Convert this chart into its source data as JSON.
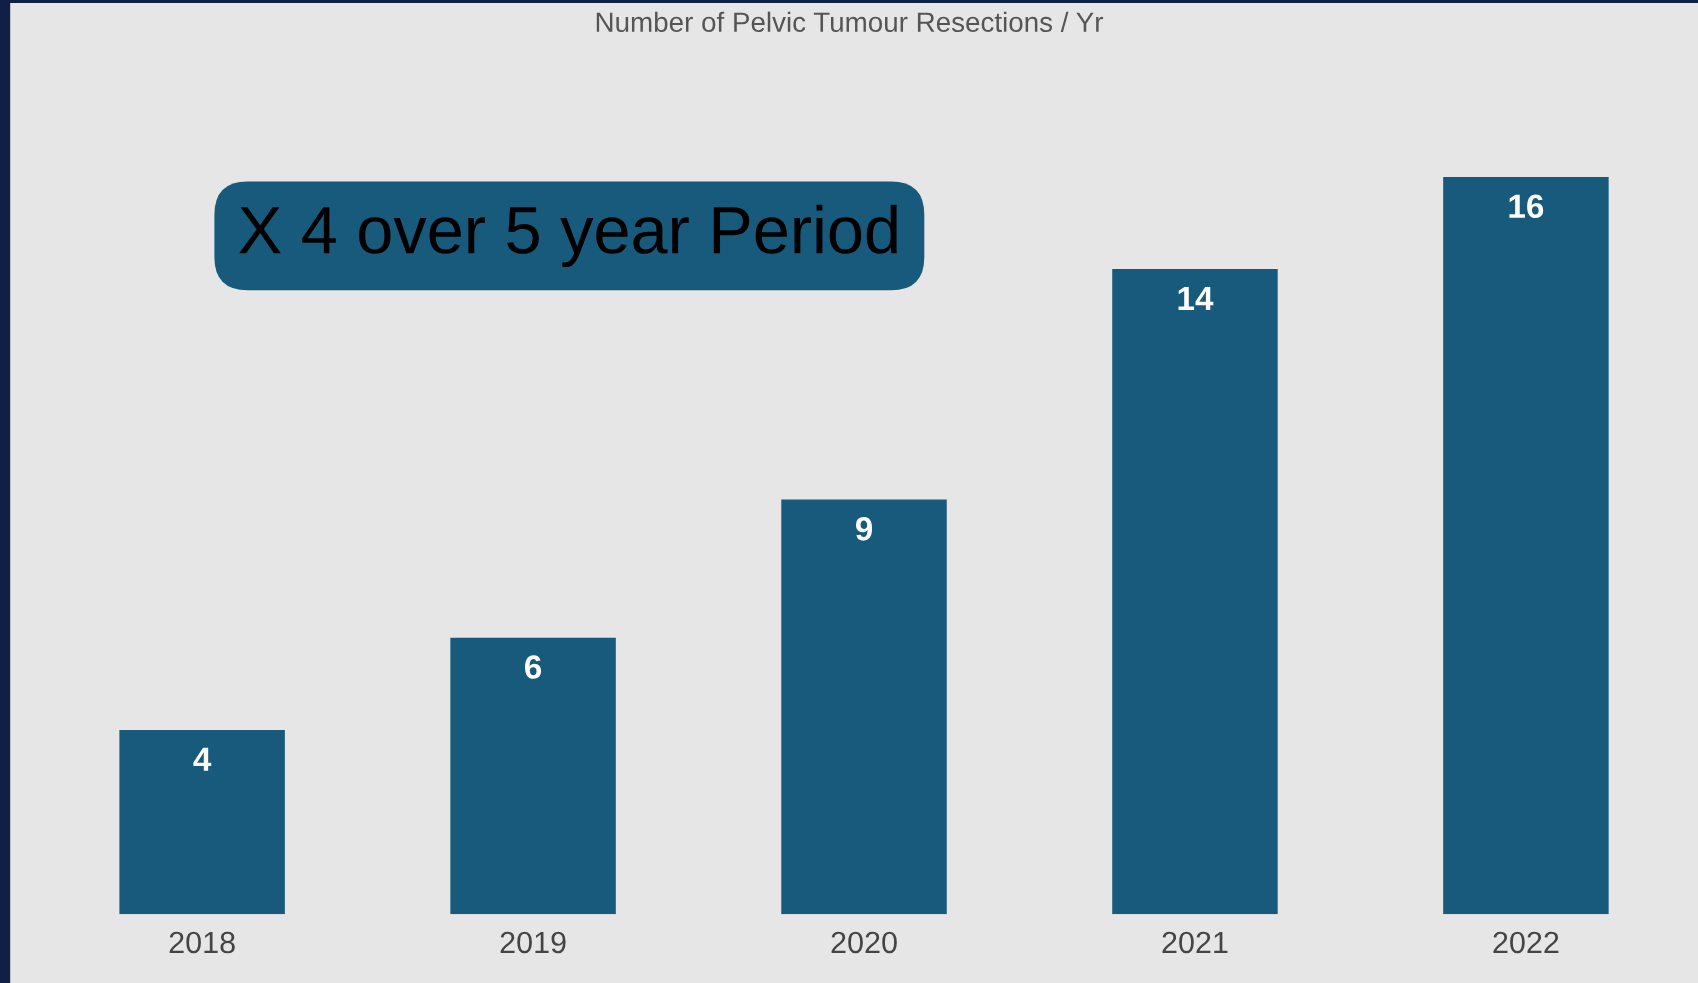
{
  "chart_data": {
    "type": "bar",
    "title": "Number of Pelvic Tumour Resections / Yr",
    "categories": [
      "2018",
      "2019",
      "2020",
      "2021",
      "2022"
    ],
    "values": [
      4,
      6,
      9,
      14,
      16
    ],
    "color": "#175a7c",
    "data_labels": true,
    "tick_labels": "x",
    "grid": false,
    "legend": false,
    "annotations": [
      "X 4 over 5 year Period"
    ]
  }
}
